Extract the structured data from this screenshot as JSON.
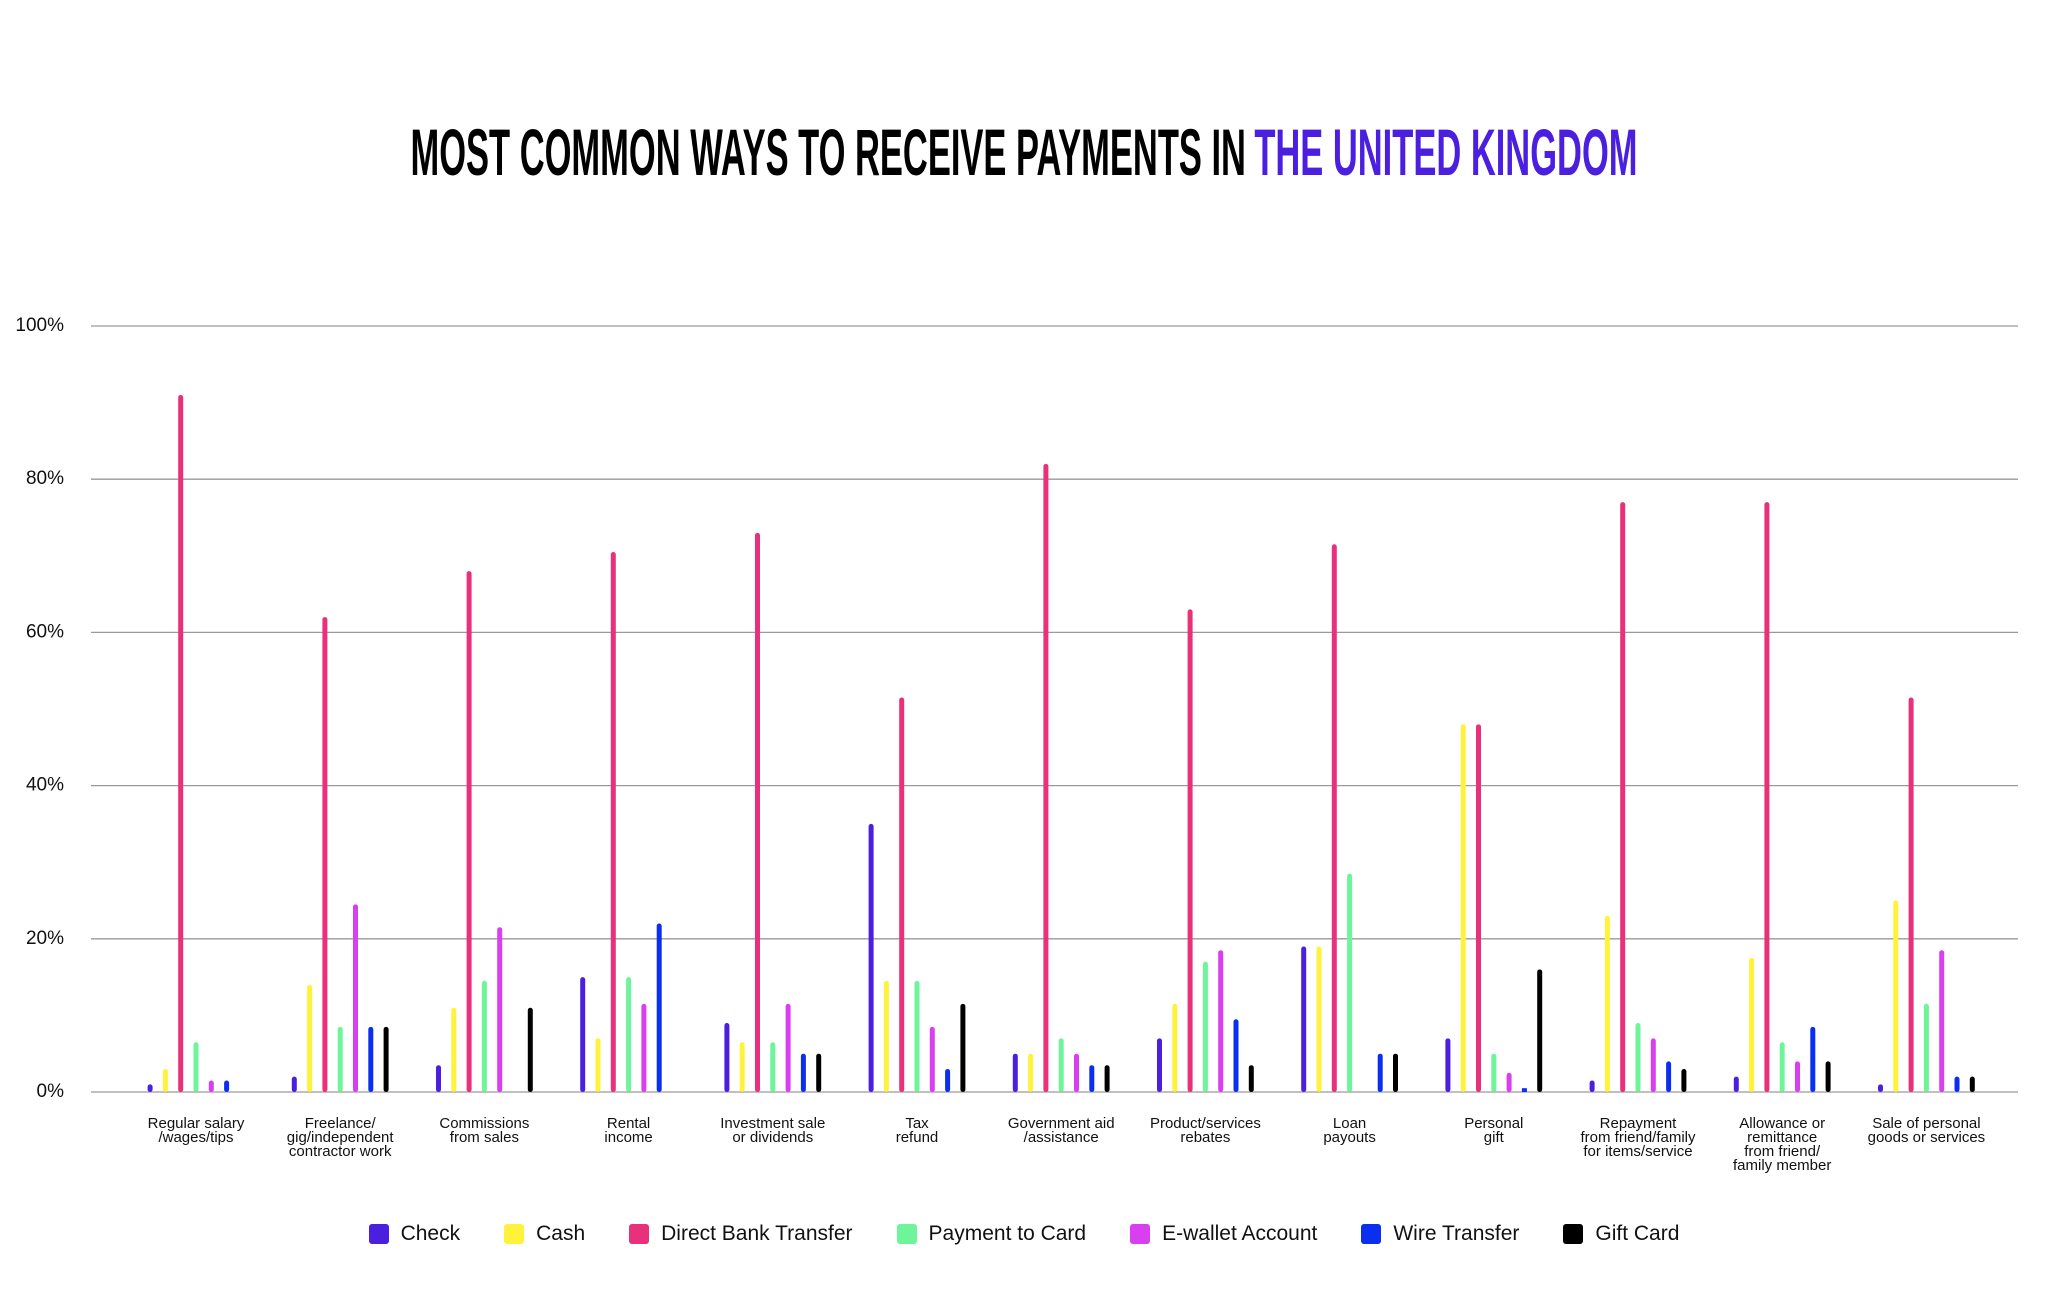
{
  "chart_data": {
    "type": "bar",
    "title": "MOST COMMON WAYS TO RECEIVE PAYMENTS IN",
    "title_highlight": "THE UNITED KINGDOM",
    "categories": [
      "Regular salary\n/wages/tips",
      "Freelance/\ngig/independent\ncontractor work",
      "Commissions\nfrom sales",
      "Rental\nincome",
      "Investment sale\nor dividends",
      "Tax\nrefund",
      "Government aid\n/assistance",
      "Product/services\nrebates",
      "Loan\npayouts",
      "Personal\ngift",
      "Repayment\nfrom friend/family\nfor items/service",
      "Allowance or\nremittance\nfrom friend/\nfamily member",
      "Sale of personal\ngoods or services"
    ],
    "series": [
      {
        "name": "Check",
        "color": "#4a1fe0",
        "values": [
          1,
          2,
          3.5,
          15,
          9,
          35,
          5,
          7,
          19,
          7,
          1.5,
          2,
          1
        ]
      },
      {
        "name": "Cash",
        "color": "#fff23a",
        "values": [
          3,
          14,
          11,
          7,
          6.5,
          14.5,
          5,
          11.5,
          19,
          48,
          23,
          17.5,
          25
        ]
      },
      {
        "name": "Direct Bank Transfer",
        "color": "#e8317a",
        "values": [
          91,
          62,
          68,
          70.5,
          73,
          51.5,
          82,
          63,
          71.5,
          48,
          77,
          77,
          51.5
        ]
      },
      {
        "name": "Payment to Card",
        "color": "#6ef59a",
        "values": [
          6.5,
          8.5,
          14.5,
          15,
          6.5,
          14.5,
          7,
          17,
          28.5,
          5,
          9,
          6.5,
          11.5
        ]
      },
      {
        "name": "E-wallet Account",
        "color": "#d93ef0",
        "values": [
          1.5,
          24.5,
          21.5,
          11.5,
          11.5,
          8.5,
          5,
          18.5,
          0,
          2.5,
          7,
          4,
          18.5
        ]
      },
      {
        "name": "Wire Transfer",
        "color": "#0a2ff0",
        "values": [
          1.5,
          8.5,
          0,
          22,
          5,
          3,
          3.5,
          9.5,
          5,
          0.5,
          4,
          8.5,
          2
        ]
      },
      {
        "name": "Gift Card",
        "color": "#000000",
        "values": [
          0,
          8.5,
          11,
          0,
          5,
          11.5,
          3.5,
          3.5,
          5,
          16,
          3,
          4,
          2
        ]
      }
    ],
    "ylim": [
      0,
      100
    ],
    "yticks": [
      {
        "value": 0,
        "label": "0%"
      },
      {
        "value": 20,
        "label": "20%"
      },
      {
        "value": 40,
        "label": "40%"
      },
      {
        "value": 60,
        "label": "60%"
      },
      {
        "value": 80,
        "label": "80%"
      },
      {
        "value": 100,
        "label": "100%"
      }
    ],
    "grid": true
  }
}
